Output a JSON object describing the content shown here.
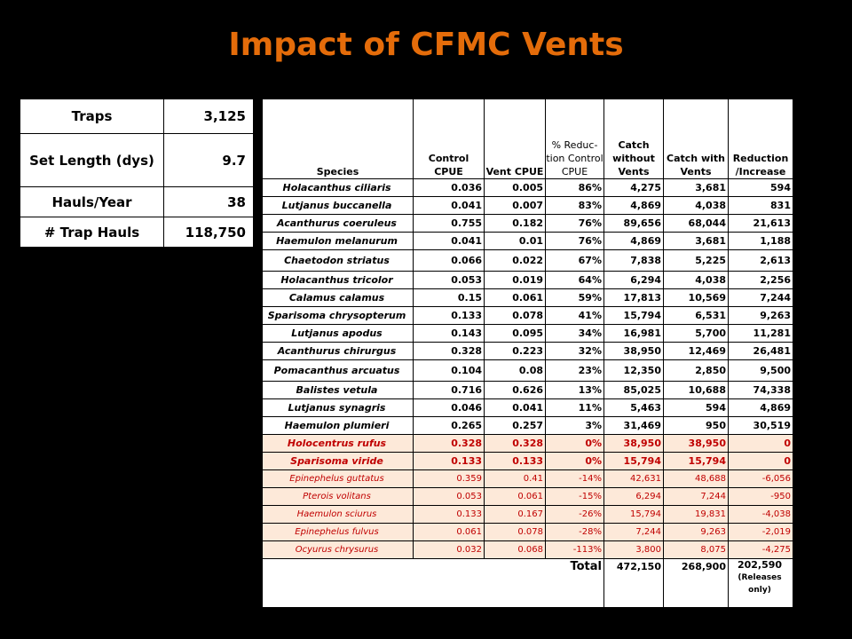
{
  "title": "Impact of CFMC Vents",
  "summary": [
    {
      "label": "Traps",
      "value": "3,125"
    },
    {
      "label": "Set  Length (dys)",
      "value": "9.7"
    },
    {
      "label": "Hauls/Year",
      "value": "38"
    },
    {
      "label": "# Trap Hauls",
      "value": "118,750"
    }
  ],
  "headers": {
    "species": "Species",
    "control_cpue": "Control CPUE",
    "vent_cpue": "Vent CPUE",
    "pct_reduction": "% Reduc-tion Control CPUE",
    "catch_without": "Catch without Vents",
    "catch_with": "Catch with Vents",
    "reduction": "Reduction /Increase"
  },
  "rows": [
    {
      "species": "Holacanthus  ciliaris",
      "control": "0.036",
      "vent": "0.005",
      "pct": "86%",
      "without": "4,275",
      "with": "3,681",
      "red": "594"
    },
    {
      "species": "Lutjanus  buccanella",
      "control": "0.041",
      "vent": "0.007",
      "pct": "83%",
      "without": "4,869",
      "with": "4,038",
      "red": "831"
    },
    {
      "species": "Acanthurus  coeruleus",
      "control": "0.755",
      "vent": "0.182",
      "pct": "76%",
      "without": "89,656",
      "with": "68,044",
      "red": "21,613"
    },
    {
      "species": "Haemulon  melanurum",
      "control": "0.041",
      "vent": "0.01",
      "pct": "76%",
      "without": "4,869",
      "with": "3,681",
      "red": "1,188"
    },
    {
      "species": "Chaetodon  striatus",
      "control": "0.066",
      "vent": "0.022",
      "pct": "67%",
      "without": "7,838",
      "with": "5,225",
      "red": "2,613"
    },
    {
      "species": "Holacanthus  tricolor",
      "control": "0.053",
      "vent": "0.019",
      "pct": "64%",
      "without": "6,294",
      "with": "4,038",
      "red": "2,256"
    },
    {
      "species": "Calamus  calamus",
      "control": "0.15",
      "vent": "0.061",
      "pct": "59%",
      "without": "17,813",
      "with": "10,569",
      "red": "7,244"
    },
    {
      "species": "Sparisoma  chrysopterum",
      "control": "0.133",
      "vent": "0.078",
      "pct": "41%",
      "without": "15,794",
      "with": "6,531",
      "red": "9,263"
    },
    {
      "species": "Lutjanus  apodus",
      "control": "0.143",
      "vent": "0.095",
      "pct": "34%",
      "without": "16,981",
      "with": "5,700",
      "red": "11,281"
    },
    {
      "species": "Acanthurus  chirurgus",
      "control": "0.328",
      "vent": "0.223",
      "pct": "32%",
      "without": "38,950",
      "with": "12,469",
      "red": "26,481"
    },
    {
      "species": "Pomacanthus  arcuatus",
      "control": "0.104",
      "vent": "0.08",
      "pct": "23%",
      "without": "12,350",
      "with": "2,850",
      "red": "9,500"
    },
    {
      "species": "Balistes  vetula",
      "control": "0.716",
      "vent": "0.626",
      "pct": "13%",
      "without": "85,025",
      "with": "10,688",
      "red": "74,338"
    },
    {
      "species": "Lutjanus  synagris",
      "control": "0.046",
      "vent": "0.041",
      "pct": "11%",
      "without": "5,463",
      "with": "594",
      "red": "4,869"
    },
    {
      "species": "Haemulon  plumieri",
      "control": "0.265",
      "vent": "0.257",
      "pct": "3%",
      "without": "31,469",
      "with": "950",
      "red": "30,519"
    },
    {
      "species": "Holocentrus  rufus",
      "control": "0.328",
      "vent": "0.328",
      "pct": "0%",
      "without": "38,950",
      "with": "38,950",
      "red": "0"
    },
    {
      "species": "Sparisoma  viride",
      "control": "0.133",
      "vent": "0.133",
      "pct": "0%",
      "without": "15,794",
      "with": "15,794",
      "red": "0"
    },
    {
      "species": "Epinephelus guttatus",
      "control": "0.359",
      "vent": "0.41",
      "pct": "-14%",
      "without": "42,631",
      "with": "48,688",
      "red": "-6,056"
    },
    {
      "species": "Pterois volitans",
      "control": "0.053",
      "vent": "0.061",
      "pct": "-15%",
      "without": "6,294",
      "with": "7,244",
      "red": "-950"
    },
    {
      "species": "Haemulon sciurus",
      "control": "0.133",
      "vent": "0.167",
      "pct": "-26%",
      "without": "15,794",
      "with": "19,831",
      "red": "-4,038"
    },
    {
      "species": "Epinephelus fulvus",
      "control": "0.061",
      "vent": "0.078",
      "pct": "-28%",
      "without": "7,244",
      "with": "9,263",
      "red": "-2,019"
    },
    {
      "species": "Ocyurus chrysurus",
      "control": "0.032",
      "vent": "0.068",
      "pct": "-113%",
      "without": "3,800",
      "with": "8,075",
      "red": "-4,275"
    }
  ],
  "total": {
    "label": "Total",
    "without": "472,150",
    "with": "268,900",
    "red": "202,590",
    "note": "(Releases only)"
  }
}
